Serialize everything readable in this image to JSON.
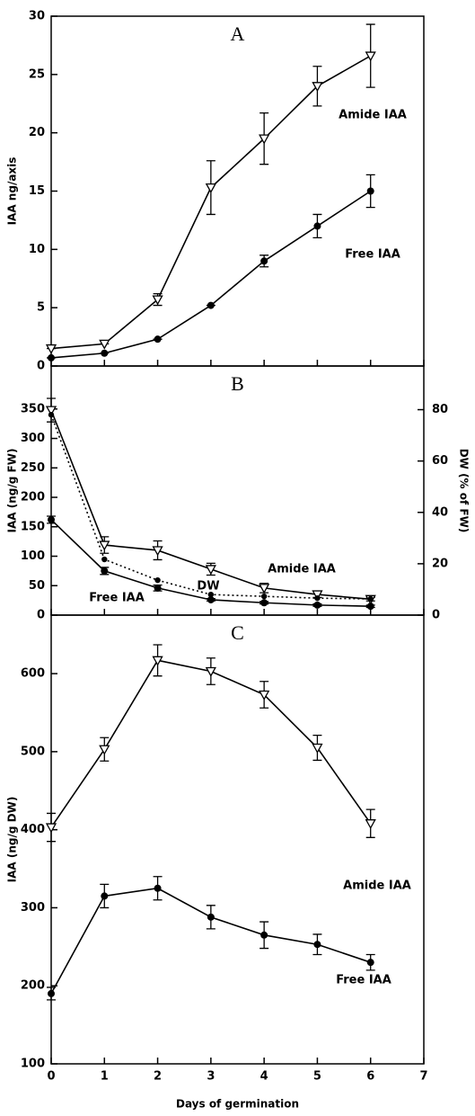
{
  "chart_data": [
    {
      "type": "line",
      "title": "A",
      "ylabel": "IAA ng/axis",
      "x": [
        0,
        1,
        2,
        3,
        4,
        5,
        6
      ],
      "xlim": [
        0,
        7
      ],
      "ylim": [
        0,
        30
      ],
      "yticks": [
        0,
        5,
        10,
        15,
        20,
        25,
        30
      ],
      "series": [
        {
          "name": "Amide IAA",
          "color": "#000000",
          "marker": "triangle-open",
          "line_style": "solid",
          "values": [
            1.5,
            1.9,
            5.7,
            15.3,
            19.5,
            24,
            26.6
          ],
          "errors": [
            0,
            0,
            0.5,
            2.3,
            2.2,
            1.7,
            2.7
          ]
        },
        {
          "name": "Free IAA",
          "color": "#000000",
          "marker": "circle",
          "line_style": "solid",
          "values": [
            0.7,
            1.1,
            2.3,
            5.2,
            9,
            12,
            15
          ],
          "errors": [
            0,
            0,
            0,
            0,
            0.5,
            1,
            1.4
          ]
        }
      ]
    },
    {
      "type": "line",
      "title": "B",
      "ylabel": "IAA (ng/g FW)",
      "y2label": "DW (% of FW)",
      "x": [
        0,
        1,
        2,
        3,
        4,
        5,
        6
      ],
      "xlim": [
        0,
        7
      ],
      "ylim": [
        0,
        423
      ],
      "yticks": [
        0,
        50,
        100,
        150,
        200,
        250,
        300,
        350
      ],
      "y2lim": [
        0,
        97
      ],
      "y2ticks": [
        0,
        20,
        40,
        60,
        80
      ],
      "series": [
        {
          "name": "Amide IAA",
          "color": "#000000",
          "marker": "triangle-open",
          "line_style": "solid",
          "values": [
            348,
            119,
            110,
            78,
            46,
            35,
            27
          ],
          "errors": [
            20,
            14,
            16,
            10,
            8,
            5,
            3
          ]
        },
        {
          "name": "Free IAA",
          "color": "#000000",
          "marker": "circle",
          "line_style": "solid",
          "values": [
            162,
            75,
            46,
            26,
            21,
            17,
            15
          ],
          "errors": [
            6,
            6,
            5,
            2,
            2,
            2,
            2
          ]
        },
        {
          "name": "DW",
          "color": "#000000",
          "marker": "circle",
          "line_style": "dotted",
          "axis": "y2",
          "values": [
            78,
            21.7,
            13.6,
            8,
            7.3,
            6.6,
            6.3
          ]
        }
      ]
    },
    {
      "type": "line",
      "title": "C",
      "ylabel": "IAA (ng/g DW)",
      "xlabel": "Days of germination",
      "x": [
        0,
        1,
        2,
        3,
        4,
        5,
        6
      ],
      "xlim": [
        0,
        7
      ],
      "xticks": [
        0,
        1,
        2,
        3,
        4,
        5,
        6,
        7
      ],
      "ylim": [
        100,
        675
      ],
      "yticks": [
        100,
        200,
        300,
        400,
        500,
        600
      ],
      "series": [
        {
          "name": "Amide IAA",
          "color": "#000000",
          "marker": "triangle-open",
          "line_style": "solid",
          "values": [
            403,
            503,
            617,
            603,
            573,
            505,
            408
          ],
          "errors": [
            18,
            15,
            20,
            17,
            17,
            16,
            18
          ]
        },
        {
          "name": "Free IAA",
          "color": "#000000",
          "marker": "circle",
          "line_style": "solid",
          "values": [
            190,
            315,
            325,
            288,
            265,
            253,
            230
          ],
          "errors": [
            8,
            15,
            15,
            15,
            17,
            13,
            10
          ]
        }
      ]
    }
  ]
}
